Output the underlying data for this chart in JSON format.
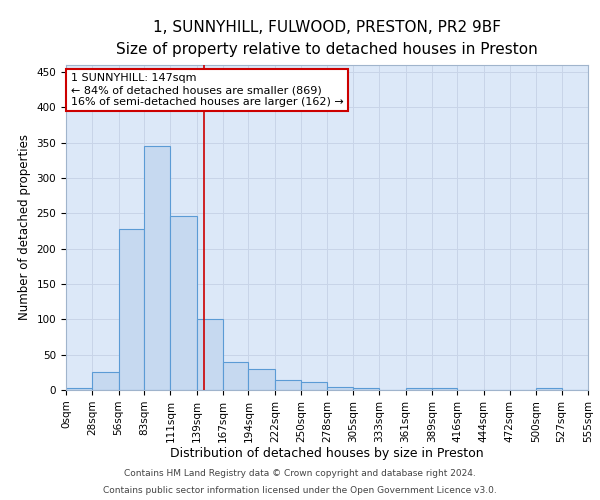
{
  "title": "1, SUNNYHILL, FULWOOD, PRESTON, PR2 9BF",
  "subtitle": "Size of property relative to detached houses in Preston",
  "xlabel": "Distribution of detached houses by size in Preston",
  "ylabel": "Number of detached properties",
  "bin_edges": [
    0,
    28,
    56,
    83,
    111,
    139,
    167,
    194,
    222,
    250,
    278,
    305,
    333,
    361,
    389,
    416,
    444,
    472,
    500,
    527,
    555
  ],
  "bar_values": [
    3,
    25,
    228,
    345,
    246,
    100,
    40,
    30,
    14,
    11,
    4,
    3,
    0,
    3,
    3,
    0,
    0,
    0,
    3,
    0
  ],
  "bar_color": "#c6d9f0",
  "bar_edgecolor": "#5b9bd5",
  "redline_x": 147,
  "annotation_title": "1 SUNNYHILL: 147sqm",
  "annotation_line1": "← 84% of detached houses are smaller (869)",
  "annotation_line2": "16% of semi-detached houses are larger (162) →",
  "redline_color": "#cc0000",
  "annotation_box_edgecolor": "#cc0000",
  "footer1": "Contains HM Land Registry data © Crown copyright and database right 2024.",
  "footer2": "Contains public sector information licensed under the Open Government Licence v3.0.",
  "ylim": [
    0,
    460
  ],
  "title_fontsize": 11,
  "subtitle_fontsize": 10,
  "tick_label_fontsize": 7.5,
  "ylabel_fontsize": 8.5,
  "xlabel_fontsize": 9,
  "annotation_fontsize": 8,
  "footer_fontsize": 6.5,
  "grid_color": "#c8d4e8",
  "background_color": "#dce8f8",
  "plot_background": "#ffffff"
}
